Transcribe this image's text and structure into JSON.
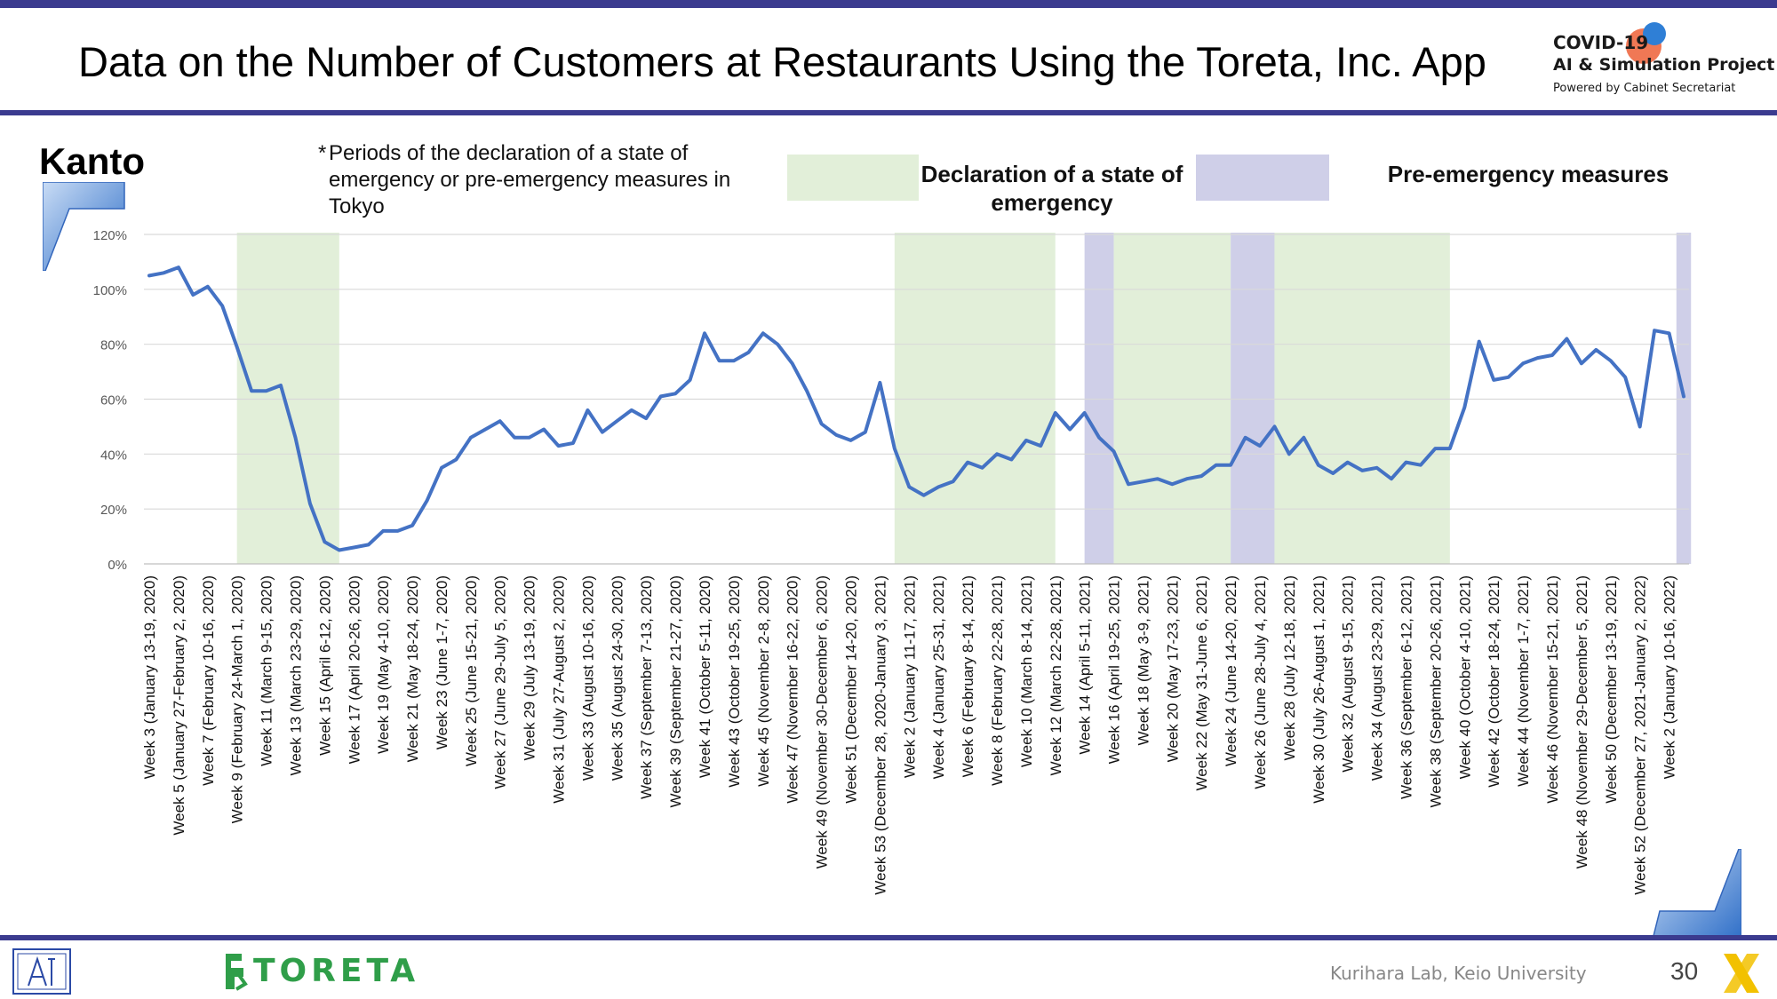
{
  "header": {
    "title": "Data on the Number of Customers at Restaurants Using the Toreta, Inc. App",
    "logo_line1": "COVID-19",
    "logo_line2": "AI & Simulation Project",
    "logo_line3": "Powered by Cabinet Secretariat"
  },
  "region_label": "Kanto",
  "note": {
    "star": "*",
    "text": "Periods of the declaration of a state of emergency or pre-emergency measures in Tokyo"
  },
  "legend": {
    "emergency_label": "Declaration of a state of emergency",
    "pre_label": "Pre-emergency measures",
    "emergency_color": "#e2efd9",
    "pre_color": "#cfcfe8"
  },
  "footer": {
    "brand": "TORETA",
    "lab": "Kurihara Lab, Keio University",
    "page": "30"
  },
  "colors": {
    "line": "#4472c4",
    "accent": "#3b3b8f",
    "grid": "#d9d9d9"
  },
  "chart_data": {
    "type": "line",
    "ylim": [
      0,
      1.2
    ],
    "yticks": [
      "0%",
      "20%",
      "40%",
      "60%",
      "80%",
      "100%",
      "120%"
    ],
    "grid": "horizontal",
    "shaded_periods": [
      {
        "kind": "emergency",
        "start": 6,
        "end": 13
      },
      {
        "kind": "emergency",
        "start": 51,
        "end": 62
      },
      {
        "kind": "pre",
        "start": 64,
        "end": 66
      },
      {
        "kind": "emergency",
        "start": 66,
        "end": 74
      },
      {
        "kind": "pre",
        "start": 74,
        "end": 77
      },
      {
        "kind": "emergency",
        "start": 77,
        "end": 89
      },
      {
        "kind": "pre",
        "start": 104.5,
        "end": 105.5
      }
    ],
    "xtick_labels": [
      "Week 3 (January 13-19, 2020)",
      "Week 5 (January 27-February 2, 2020)",
      "Week 7 (February 10-16, 2020)",
      "Week 9 (February 24-March 1, 2020)",
      "Week 11 (March 9-15, 2020)",
      "Week 13 (March 23-29, 2020)",
      "Week 15 (April 6-12, 2020)",
      "Week 17 (April 20-26, 2020)",
      "Week 19 (May 4-10, 2020)",
      "Week 21 (May 18-24, 2020)",
      "Week 23 (June 1-7, 2020)",
      "Week 25 (June 15-21, 2020)",
      "Week 27 (June 29-July 5, 2020)",
      "Week 29 (July 13-19, 2020)",
      "Week 31 (July 27-August 2, 2020)",
      "Week 33 (August 10-16, 2020)",
      "Week 35 (August 24-30, 2020)",
      "Week 37 (September 7-13, 2020)",
      "Week 39 (September 21-27, 2020)",
      "Week 41 (October 5-11, 2020)",
      "Week 43 (October 19-25, 2020)",
      "Week 45 (November 2-8, 2020)",
      "Week 47 (November 16-22, 2020)",
      "Week 49 (November 30-December 6, 2020)",
      "Week 51 (December 14-20, 2020)",
      "Week 53 (December 28, 2020-January 3, 2021)",
      "Week 2 (January 11-17, 2021)",
      "Week 4 (January 25-31, 2021)",
      "Week 6 (February 8-14, 2021)",
      "Week 8 (February 22-28, 2021)",
      "Week 10 (March 8-14, 2021)",
      "Week 12 (March 22-28, 2021)",
      "Week 14 (April 5-11, 2021)",
      "Week 16 (April 19-25, 2021)",
      "Week 18 (May 3-9, 2021)",
      "Week 20 (May 17-23, 2021)",
      "Week 22 (May 31-June 6, 2021)",
      "Week 24 (June 14-20, 2021)",
      "Week 26 (June 28-July 4, 2021)",
      "Week 28 (July 12-18, 2021)",
      "Week 30 (July 26-August 1, 2021)",
      "Week 32 (August 9-15, 2021)",
      "Week 34 (August 23-29, 2021)",
      "Week 36 (September 6-12, 2021)",
      "Week 38 (September 20-26, 2021)",
      "Week 40 (October 4-10, 2021)",
      "Week 42 (October 18-24, 2021)",
      "Week 44 (November 1-7, 2021)",
      "Week 46 (November 15-21, 2021)",
      "Week 48 (November 29-December 5, 2021)",
      "Week 50 (December 13-19, 2021)",
      "Week 52 (December 27, 2021-January 2, 2022)",
      "Week 2 (January 10-16, 2022)"
    ],
    "series": [
      {
        "values": [
          1.05,
          1.06,
          1.08,
          0.98,
          1.01,
          0.94,
          0.79,
          0.63,
          0.63,
          0.65,
          0.46,
          0.22,
          0.08,
          0.05,
          0.06,
          0.07,
          0.12,
          0.12,
          0.14,
          0.23,
          0.35,
          0.38,
          0.46,
          0.49,
          0.52,
          0.46,
          0.46,
          0.49,
          0.43,
          0.44,
          0.56,
          0.48,
          0.52,
          0.56,
          0.53,
          0.61,
          0.62,
          0.67,
          0.84,
          0.74,
          0.74,
          0.77,
          0.84,
          0.8,
          0.73,
          0.63,
          0.51,
          0.47,
          0.45,
          0.48,
          0.66,
          0.42,
          0.28,
          0.25,
          0.28,
          0.3,
          0.37,
          0.35,
          0.4,
          0.38,
          0.45,
          0.43,
          0.55,
          0.49,
          0.55,
          0.46,
          0.41,
          0.29,
          0.3,
          0.31,
          0.29,
          0.31,
          0.32,
          0.36,
          0.36,
          0.46,
          0.43,
          0.5,
          0.4,
          0.46,
          0.36,
          0.33,
          0.37,
          0.34,
          0.35,
          0.31,
          0.37,
          0.36,
          0.42,
          0.42,
          0.57,
          0.81,
          0.67,
          0.68,
          0.73,
          0.75,
          0.76,
          0.82,
          0.73,
          0.78,
          0.74,
          0.68,
          0.5,
          0.85,
          0.84,
          0.61
        ]
      }
    ]
  }
}
